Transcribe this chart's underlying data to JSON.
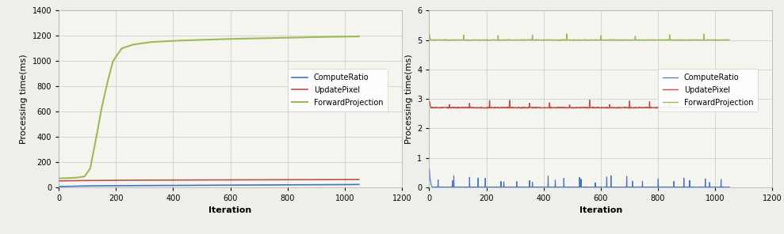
{
  "background_color": "#eeeeea",
  "plot_bg_color": "#f5f5ef",
  "chart_bg": "#f0f0ea",
  "left": {
    "xlabel": "Iteration",
    "ylabel": "Processing time(ms)",
    "xlim": [
      0,
      1200
    ],
    "ylim": [
      0,
      1400
    ],
    "xticks": [
      0,
      200,
      400,
      600,
      800,
      1000,
      1200
    ],
    "yticks": [
      0,
      200,
      400,
      600,
      800,
      1000,
      1200,
      1400
    ],
    "compute_ratio": {
      "x": [
        1,
        50,
        100,
        200,
        400,
        600,
        800,
        1000,
        1050
      ],
      "y": [
        5,
        8,
        10,
        12,
        14,
        16,
        18,
        20,
        22
      ],
      "color": "#4472C4",
      "label": "ComputeRatio",
      "linewidth": 1.2
    },
    "update_pixel": {
      "x": [
        1,
        50,
        100,
        200,
        400,
        600,
        800,
        1000,
        1050
      ],
      "y": [
        50,
        52,
        53,
        55,
        57,
        58,
        59,
        60,
        61
      ],
      "color": "#C0504D",
      "label": "UpdatePixel",
      "linewidth": 1.2
    },
    "forward_projection": {
      "x": [
        1,
        30,
        60,
        90,
        110,
        130,
        150,
        170,
        190,
        220,
        260,
        320,
        400,
        500,
        600,
        700,
        800,
        900,
        1000,
        1050
      ],
      "y": [
        70,
        72,
        75,
        85,
        150,
        380,
        630,
        830,
        1000,
        1100,
        1130,
        1150,
        1160,
        1168,
        1175,
        1180,
        1185,
        1190,
        1193,
        1195
      ],
      "color": "#9BBB59",
      "label": "ForwardProjection",
      "linewidth": 1.5
    }
  },
  "right": {
    "xlabel": "Iteration",
    "ylabel": "Processing time(ms)",
    "xlim": [
      0,
      1200
    ],
    "ylim": [
      0,
      6
    ],
    "xticks": [
      0,
      200,
      400,
      600,
      800,
      1000,
      1200
    ],
    "yticks": [
      0,
      1,
      2,
      3,
      4,
      5,
      6
    ],
    "compute_ratio": {
      "color": "#4472C4",
      "label": "ComputeRatio",
      "linewidth": 0.8
    },
    "update_pixel": {
      "color": "#C0504D",
      "label": "UpdatePixel",
      "linewidth": 1.0
    },
    "forward_projection": {
      "color": "#9BBB59",
      "label": "ForwardProjection",
      "linewidth": 1.0
    }
  },
  "legend_fontsize": 7,
  "axis_label_fontsize": 8,
  "tick_fontsize": 7
}
